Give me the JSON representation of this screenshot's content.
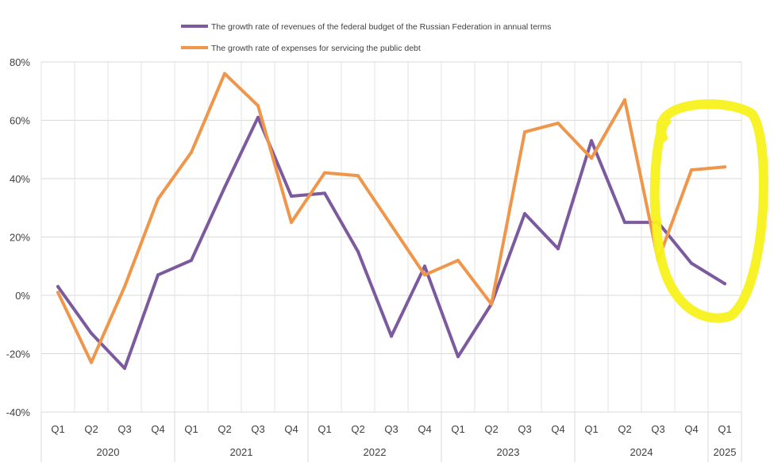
{
  "chart_data": {
    "type": "line",
    "categories": [
      "Q1",
      "Q2",
      "Q3",
      "Q4",
      "Q1",
      "Q2",
      "Q3",
      "Q4",
      "Q1",
      "Q2",
      "Q3",
      "Q4",
      "Q1",
      "Q2",
      "Q3",
      "Q4",
      "Q1",
      "Q2",
      "Q3",
      "Q4",
      "Q1"
    ],
    "years": [
      {
        "label": "2020",
        "start": 0,
        "end": 3
      },
      {
        "label": "2021",
        "start": 4,
        "end": 7
      },
      {
        "label": "2022",
        "start": 8,
        "end": 11
      },
      {
        "label": "2023",
        "start": 12,
        "end": 15
      },
      {
        "label": "2024",
        "start": 16,
        "end": 19
      },
      {
        "label": "2025",
        "start": 20,
        "end": 20
      }
    ],
    "series": [
      {
        "name": "The growth rate of revenues of the federal budget of the Russian Federation in annual terms",
        "color": "#7b5a9e",
        "values": [
          3,
          -13,
          -25,
          7,
          12,
          37,
          61,
          34,
          35,
          15,
          -14,
          10,
          -21,
          -3,
          28,
          16,
          53,
          25,
          25,
          11,
          4
        ]
      },
      {
        "name": "The growth rate of expenses for servicing the public debt",
        "color": "#f0964a",
        "values": [
          1,
          -23,
          3,
          33,
          49,
          76,
          65,
          25,
          42,
          41,
          24,
          7,
          12,
          -3,
          56,
          59,
          47,
          67,
          12,
          43,
          44
        ]
      }
    ],
    "y_ticks": [
      "-40%",
      "-20%",
      "0%",
      "20%",
      "40%",
      "60%",
      "80%"
    ],
    "ylim": [
      -40,
      80
    ],
    "grid": true,
    "legend_position": "top",
    "highlight_color": "#f7f21c"
  }
}
